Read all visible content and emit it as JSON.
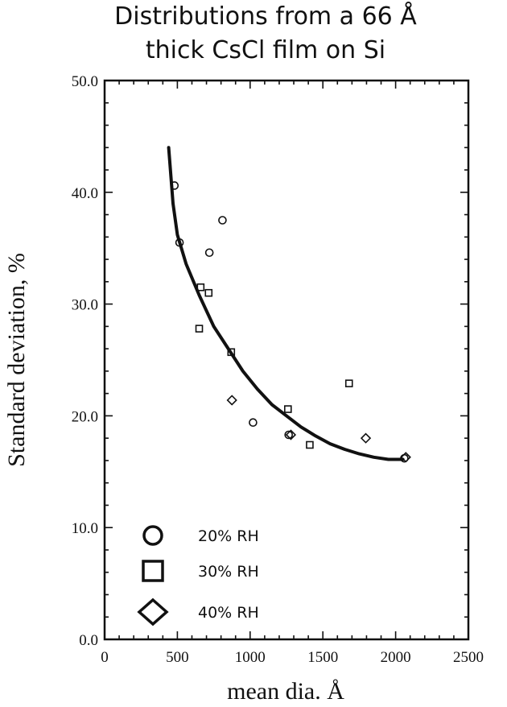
{
  "chart_data": {
    "type": "scatter",
    "title_lines": [
      "Distributions from a 66 Å",
      "thick CsCl film on Si"
    ],
    "xlabel": "mean dia. Å",
    "ylabel": "Standard deviation, %",
    "xlim": [
      0,
      2500
    ],
    "ylim": [
      0,
      50
    ],
    "x_ticks": [
      0,
      500,
      1000,
      1500,
      2000,
      2500
    ],
    "x_tick_labels": [
      "0",
      "500",
      "1000",
      "1500",
      "2000",
      "2500"
    ],
    "y_ticks": [
      0,
      10,
      20,
      30,
      40,
      50
    ],
    "y_tick_labels": [
      "0.0",
      "10.0",
      "20.0",
      "30.0",
      "40.0",
      "50.0"
    ],
    "grid": false,
    "legend_position": "bottom-left",
    "series": [
      {
        "name": "20% RH",
        "marker": "circle",
        "points": [
          [
            480,
            40.6
          ],
          [
            515,
            35.5
          ],
          [
            720,
            34.6
          ],
          [
            810,
            37.5
          ],
          [
            1020,
            19.4
          ],
          [
            1265,
            18.3
          ],
          [
            2060,
            16.2
          ]
        ]
      },
      {
        "name": "30% RH",
        "marker": "square",
        "points": [
          [
            650,
            27.8
          ],
          [
            660,
            31.5
          ],
          [
            715,
            31.0
          ],
          [
            870,
            25.7
          ],
          [
            1260,
            20.6
          ],
          [
            1410,
            17.4
          ],
          [
            1680,
            22.9
          ]
        ]
      },
      {
        "name": "40% RH",
        "marker": "diamond",
        "points": [
          [
            875,
            21.4
          ],
          [
            1280,
            18.3
          ],
          [
            1795,
            18.0
          ],
          [
            2070,
            16.3
          ]
        ]
      }
    ],
    "fit_curve": [
      [
        440,
        44.0
      ],
      [
        470,
        39.0
      ],
      [
        500,
        36.2
      ],
      [
        560,
        33.6
      ],
      [
        650,
        30.8
      ],
      [
        750,
        28.0
      ],
      [
        850,
        26.0
      ],
      [
        950,
        24.0
      ],
      [
        1050,
        22.4
      ],
      [
        1150,
        21.0
      ],
      [
        1250,
        20.0
      ],
      [
        1350,
        19.0
      ],
      [
        1450,
        18.2
      ],
      [
        1550,
        17.5
      ],
      [
        1650,
        17.0
      ],
      [
        1750,
        16.6
      ],
      [
        1850,
        16.3
      ],
      [
        1950,
        16.1
      ],
      [
        2050,
        16.1
      ]
    ]
  }
}
